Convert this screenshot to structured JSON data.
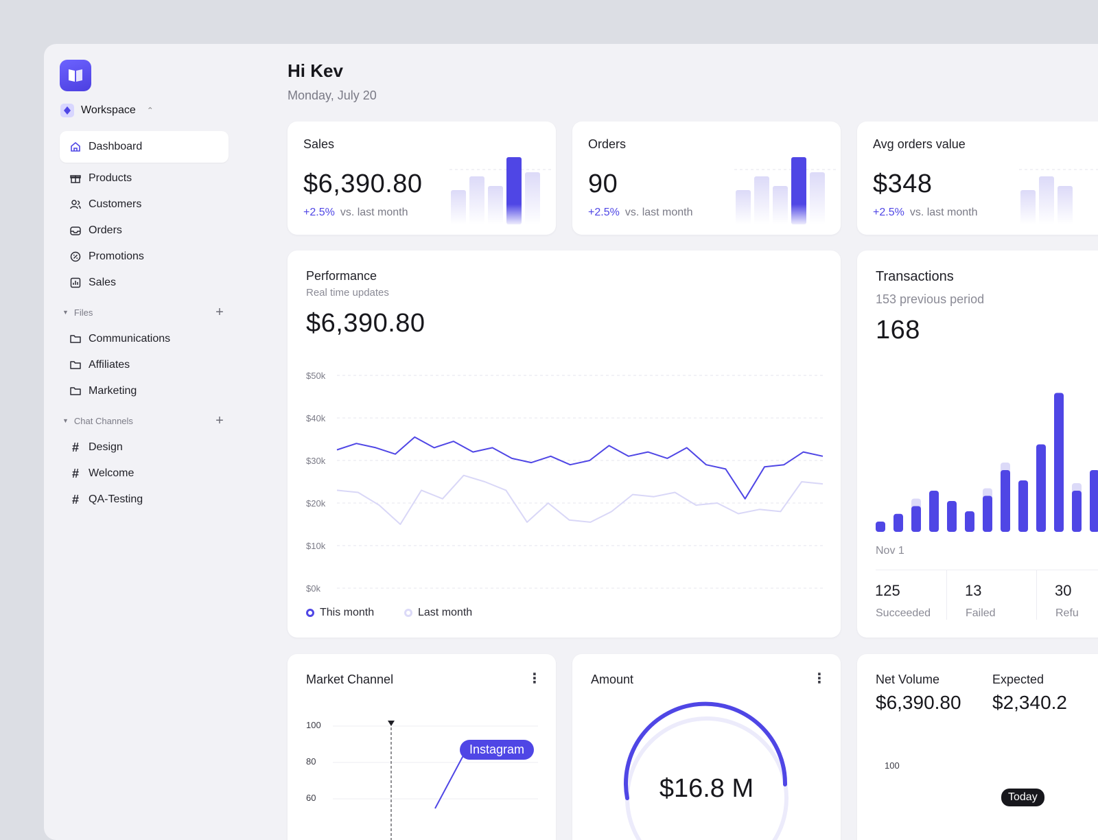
{
  "sidebar": {
    "workspace": "Workspace",
    "items": [
      {
        "label": "Dashboard",
        "icon": "home-icon"
      },
      {
        "label": "Products",
        "icon": "gift-icon"
      },
      {
        "label": "Customers",
        "icon": "users-icon"
      },
      {
        "label": "Orders",
        "icon": "inbox-icon"
      },
      {
        "label": "Promotions",
        "icon": "badge-percent-icon"
      },
      {
        "label": "Sales",
        "icon": "bar-chart-icon"
      }
    ],
    "files_label": "Files",
    "files": [
      "Communications",
      "Affiliates",
      "Marketing"
    ],
    "chat_label": "Chat Channels",
    "channels": [
      "Design",
      "Welcome",
      "QA-Testing"
    ]
  },
  "header": {
    "greeting": "Hi Kev",
    "date": "Monday, July 20"
  },
  "kpis": [
    {
      "title": "Sales",
      "value": "$6,390.80",
      "delta": "+2.5%",
      "delta_text": "vs. last month"
    },
    {
      "title": "Orders",
      "value": "90",
      "delta": "+2.5%",
      "delta_text": "vs. last month"
    },
    {
      "title": "Avg orders value",
      "value": "$348",
      "delta": "+2.5%",
      "delta_text": "vs. last month"
    }
  ],
  "performance": {
    "title": "Performance",
    "subtitle": "Real time updates",
    "value": "$6,390.80",
    "legend_this": "This month",
    "legend_last": "Last month"
  },
  "chart_data": [
    {
      "type": "line",
      "title": "Performance",
      "y_ticks": [
        "$0k",
        "$10k",
        "$20k",
        "$30k",
        "$40k",
        "$50k"
      ],
      "ylim": [
        0,
        50
      ],
      "grid": true,
      "legend_position": "bottom-left",
      "series": [
        {
          "name": "This month",
          "color": "#4f46e5",
          "values": [
            32.5,
            34,
            33,
            31.5,
            35.5,
            33,
            34.5,
            32,
            33,
            30.5,
            29.5,
            31,
            29,
            30,
            33.5,
            31,
            32,
            30.5,
            33,
            29,
            28,
            21,
            28.5,
            29,
            32,
            31
          ]
        },
        {
          "name": "Last month",
          "color": "#d9d7f7",
          "values": [
            23,
            22.5,
            19.5,
            15,
            23,
            21,
            26.5,
            25,
            23,
            15.5,
            20,
            16,
            15.5,
            18,
            22,
            21.5,
            22.5,
            19.5,
            20,
            17.5,
            18.5,
            18,
            25,
            24.5
          ]
        }
      ]
    },
    {
      "type": "bar",
      "title": "Transactions",
      "x_start_label": "Nov 1",
      "series": [
        {
          "name": "Succeeded",
          "color": "#4f46e5",
          "values": [
            2,
            3.5,
            5,
            8,
            6,
            4,
            7,
            12,
            10,
            17,
            27,
            8,
            12
          ]
        },
        {
          "name": "Previous",
          "color": "#dcdaf8",
          "values": [
            0,
            0,
            2,
            0,
            0,
            0,
            2,
            2,
            0,
            0,
            0,
            2,
            0
          ]
        }
      ]
    }
  ],
  "transactions": {
    "title": "Transactions",
    "previous": "153 previous period",
    "value": "168",
    "x_label": "Nov 1",
    "stats": [
      {
        "num": "125",
        "label": "Succeeded"
      },
      {
        "num": "13",
        "label": "Failed"
      },
      {
        "num": "30",
        "label": "Refu"
      }
    ]
  },
  "market": {
    "title": "Market Channel",
    "y_ticks": [
      "100",
      "80",
      "60"
    ],
    "tag": "Instagram"
  },
  "amount": {
    "title": "Amount",
    "value": "$16.8 M"
  },
  "net": {
    "title": "Net Volume",
    "value": "$6,390.80",
    "expected_title": "Expected",
    "expected_value": "$2,340.2",
    "y_tick": "100",
    "today": "Today"
  }
}
